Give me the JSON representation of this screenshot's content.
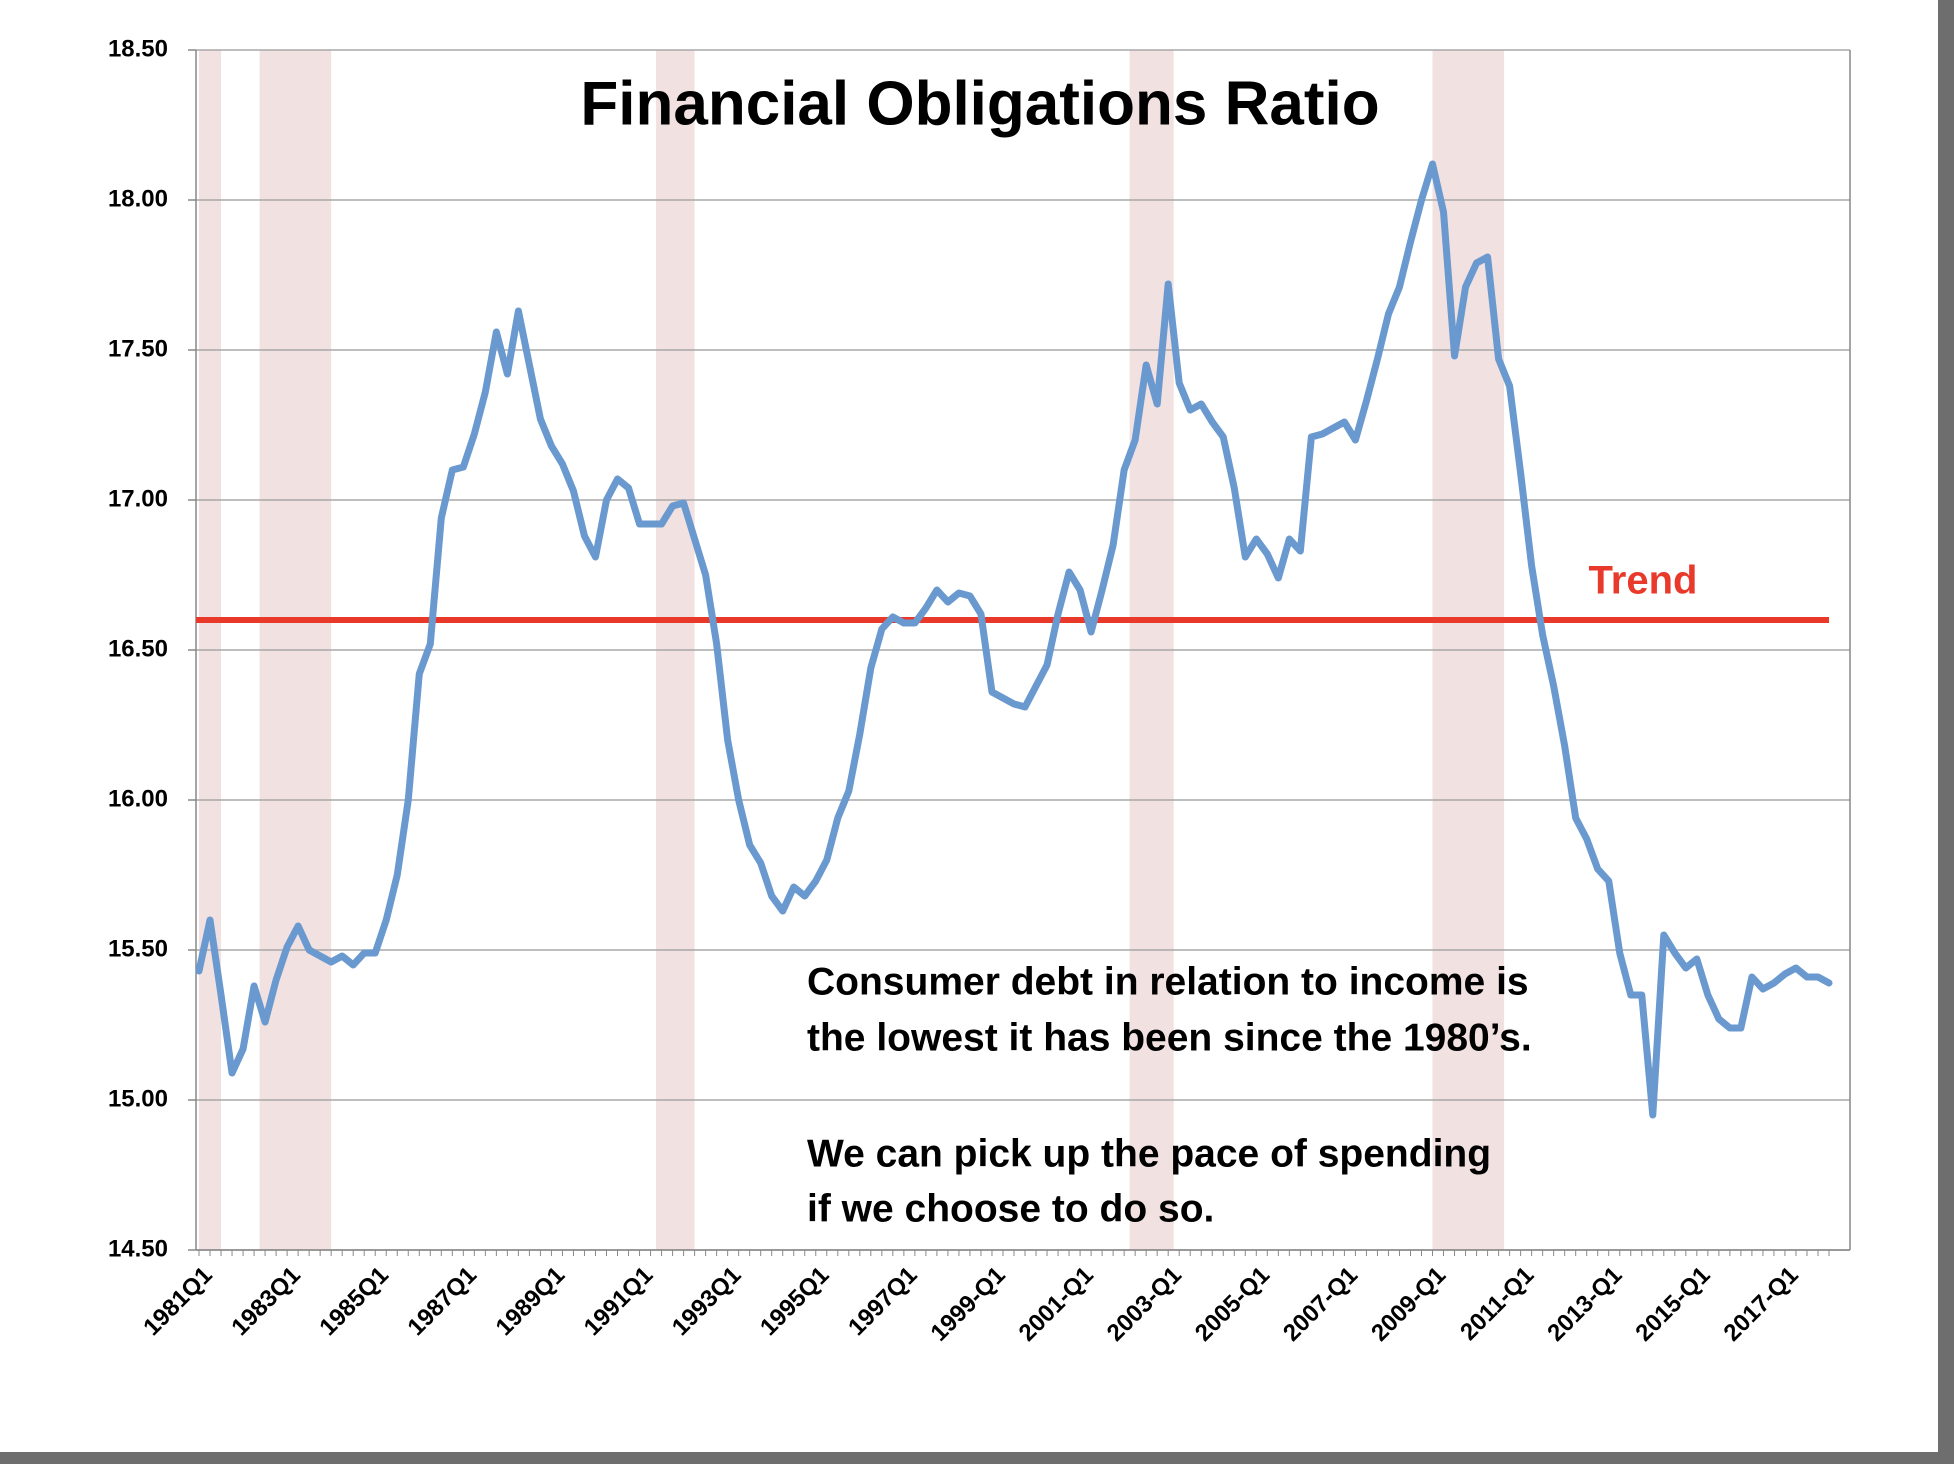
{
  "chart_data": {
    "type": "line",
    "title": "Financial Obligations Ratio",
    "categories": [
      "1981Q1",
      null,
      null,
      null,
      null,
      null,
      null,
      null,
      "1983Q1",
      null,
      null,
      null,
      null,
      null,
      null,
      null,
      "1985Q1",
      null,
      null,
      null,
      null,
      null,
      null,
      null,
      "1987Q1",
      null,
      null,
      null,
      null,
      null,
      null,
      null,
      "1989Q1",
      null,
      null,
      null,
      null,
      null,
      null,
      null,
      "1991Q1",
      null,
      null,
      null,
      null,
      null,
      null,
      null,
      "1993Q1",
      null,
      null,
      null,
      null,
      null,
      null,
      null,
      "1995Q1",
      null,
      null,
      null,
      null,
      null,
      null,
      null,
      "1997Q1",
      null,
      null,
      null,
      null,
      null,
      null,
      null,
      "1999-Q1",
      null,
      null,
      null,
      null,
      null,
      null,
      null,
      "2001-Q1",
      null,
      null,
      null,
      null,
      null,
      null,
      null,
      "2003-Q1",
      null,
      null,
      null,
      null,
      null,
      null,
      null,
      "2005-Q1",
      null,
      null,
      null,
      null,
      null,
      null,
      null,
      "2007-Q1",
      null,
      null,
      null,
      null,
      null,
      null,
      null,
      "2009-Q1",
      null,
      null,
      null,
      null,
      null,
      null,
      null,
      "2011-Q1",
      null,
      null,
      null,
      null,
      null,
      null,
      null,
      "2013-Q1",
      null,
      null,
      null,
      null,
      null,
      null,
      null,
      "2015-Q1",
      null,
      null,
      null,
      null,
      null,
      null,
      null,
      "2017-Q1",
      null,
      null,
      null,
      null
    ],
    "values": [
      15.43,
      15.6,
      15.35,
      15.09,
      15.17,
      15.38,
      15.26,
      15.4,
      15.51,
      15.58,
      15.5,
      15.48,
      15.46,
      15.48,
      15.45,
      15.49,
      15.49,
      15.6,
      15.75,
      16.0,
      16.42,
      16.52,
      16.94,
      17.1,
      17.11,
      17.22,
      17.36,
      17.56,
      17.42,
      17.63,
      17.45,
      17.27,
      17.18,
      17.12,
      17.03,
      16.88,
      16.81,
      17.0,
      17.07,
      17.04,
      16.92,
      16.92,
      16.92,
      16.98,
      16.99,
      16.87,
      16.75,
      16.52,
      16.2,
      16.0,
      15.85,
      15.79,
      15.68,
      15.63,
      15.71,
      15.68,
      15.73,
      15.8,
      15.94,
      16.03,
      16.22,
      16.44,
      16.57,
      16.61,
      16.59,
      16.59,
      16.64,
      16.7,
      16.66,
      16.69,
      16.68,
      16.62,
      16.36,
      16.34,
      16.32,
      16.31,
      16.38,
      16.45,
      16.62,
      16.76,
      16.7,
      16.56,
      16.7,
      16.85,
      17.1,
      17.2,
      17.45,
      17.32,
      17.72,
      17.39,
      17.3,
      17.32,
      17.26,
      17.21,
      17.04,
      16.81,
      16.87,
      16.82,
      16.74,
      16.87,
      16.83,
      17.21,
      17.22,
      17.24,
      17.26,
      17.2,
      17.33,
      17.47,
      17.62,
      17.71,
      17.86,
      18.0,
      18.12,
      17.96,
      17.48,
      17.71,
      17.79,
      17.81,
      17.47,
      17.38,
      17.09,
      16.78,
      16.55,
      16.38,
      16.18,
      15.94,
      15.87,
      15.77,
      15.73,
      15.49,
      15.35,
      15.35,
      14.95,
      15.55,
      15.49,
      15.44,
      15.47,
      15.35,
      15.27,
      15.24,
      15.24,
      15.41,
      15.37,
      15.39,
      15.42,
      15.44,
      15.41,
      15.41,
      15.39
    ],
    "color": "#6a99cf",
    "ylim": [
      14.5,
      18.5
    ],
    "yticks": [
      {
        "value": 14.5,
        "label": "14.50"
      },
      {
        "value": 15,
        "label": "15.00"
      },
      {
        "value": 15.5,
        "label": "15.50"
      },
      {
        "value": 16,
        "label": "16.00"
      },
      {
        "value": 16.5,
        "label": "16.50"
      },
      {
        "value": 17,
        "label": "17.00"
      },
      {
        "value": 17.5,
        "label": "17.50"
      },
      {
        "value": 18,
        "label": "18.00"
      },
      {
        "value": 18.5,
        "label": "18.50"
      }
    ],
    "grid": true,
    "shaded_periods": [
      [
        0,
        2
      ],
      [
        5.5,
        12
      ],
      [
        41.5,
        45
      ],
      [
        84.5,
        88.5
      ],
      [
        112,
        118.5
      ]
    ],
    "shade_color": "#f2e1e1",
    "trend": {
      "label": "Trend",
      "value": 16.6,
      "color": "#e8392b"
    },
    "annotation": [
      "Consumer debt in relation to income is",
      "the lowest it has been since the 1980’s.",
      "We can pick up the pace of spending",
      "if we choose to do so."
    ]
  }
}
